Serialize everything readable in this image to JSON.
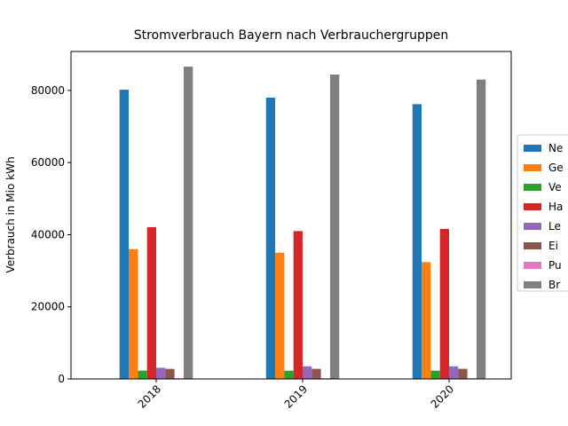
{
  "chart_data": {
    "type": "bar",
    "title": "Stromverbrauch Bayern nach Verbrauchergruppen",
    "y_label": "Verbrauch in Mio kWh",
    "categories": [
      "2018",
      "2019",
      "2020"
    ],
    "series": [
      {
        "name": "Ne",
        "color": "#1f77b4",
        "values": [
          80200,
          78000,
          76200
        ]
      },
      {
        "name": "Ge",
        "color": "#ff7f0e",
        "values": [
          36000,
          35000,
          32400
        ]
      },
      {
        "name": "Ve",
        "color": "#2ca02c",
        "values": [
          2300,
          2300,
          2300
        ]
      },
      {
        "name": "Ha",
        "color": "#d62728",
        "values": [
          42100,
          41000,
          41600
        ]
      },
      {
        "name": "Le",
        "color": "#9467bd",
        "values": [
          3100,
          3500,
          3500
        ]
      },
      {
        "name": "Ei",
        "color": "#8c564b",
        "values": [
          2800,
          2800,
          2800
        ]
      },
      {
        "name": "Pu",
        "color": "#e377c2",
        "values": [
          200,
          200,
          200
        ]
      },
      {
        "name": "Br",
        "color": "#7f7f7f",
        "values": [
          86600,
          84400,
          83000
        ]
      }
    ],
    "ylim": [
      0,
      90800
    ],
    "yticks": [
      0,
      20000,
      40000,
      60000,
      80000
    ],
    "legend": "right"
  }
}
